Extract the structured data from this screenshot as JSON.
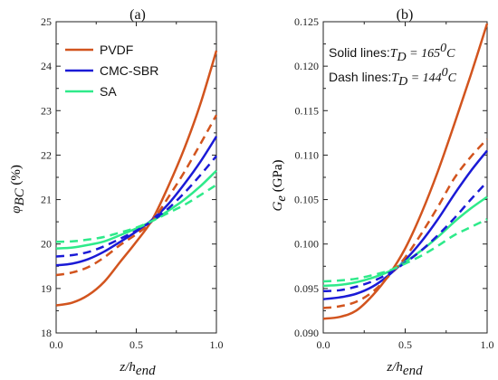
{
  "chart_data": [
    {
      "panel_label": "(a)",
      "type": "line",
      "xlabel": "z/h_end",
      "ylabel": "φ_BC (%)",
      "xlim": [
        0.0,
        1.0
      ],
      "ylim": [
        18,
        25
      ],
      "xticks": [
        "0.0",
        "0.5",
        "1.0"
      ],
      "yticks": [
        "18",
        "19",
        "20",
        "21",
        "22",
        "23",
        "24",
        "25"
      ],
      "x": [
        0.0,
        0.1,
        0.2,
        0.3,
        0.4,
        0.5,
        0.6,
        0.7,
        0.8,
        0.9,
        1.0
      ],
      "series": [
        {
          "name": "PVDF",
          "style": "solid",
          "color": "#D2541E",
          "values": [
            18.62,
            18.68,
            18.85,
            19.15,
            19.6,
            20.05,
            20.55,
            21.3,
            22.15,
            23.15,
            24.35
          ]
        },
        {
          "name": "CMC-SBR",
          "style": "solid",
          "color": "#1A1AD6",
          "values": [
            19.52,
            19.56,
            19.66,
            19.83,
            20.05,
            20.28,
            20.55,
            20.9,
            21.35,
            21.85,
            22.42
          ]
        },
        {
          "name": "SA",
          "style": "solid",
          "color": "#2EEA8A",
          "values": [
            19.9,
            19.92,
            19.98,
            20.06,
            20.2,
            20.35,
            20.52,
            20.75,
            21.0,
            21.3,
            21.65
          ]
        },
        {
          "name": "PVDF",
          "style": "dash",
          "color": "#D2541E",
          "values": [
            19.3,
            19.36,
            19.48,
            19.7,
            19.98,
            20.22,
            20.52,
            21.05,
            21.62,
            22.25,
            22.9
          ]
        },
        {
          "name": "CMC-SBR",
          "style": "dash",
          "color": "#1A1AD6",
          "values": [
            19.72,
            19.75,
            19.82,
            19.95,
            20.12,
            20.3,
            20.52,
            20.8,
            21.15,
            21.55,
            21.98
          ]
        },
        {
          "name": "SA",
          "style": "dash",
          "color": "#2EEA8A",
          "values": [
            20.05,
            20.06,
            20.1,
            20.16,
            20.26,
            20.37,
            20.52,
            20.7,
            20.88,
            21.1,
            21.33
          ]
        }
      ],
      "legend": {
        "position": "top-left",
        "entries": [
          "PVDF",
          "CMC-SBR",
          "SA"
        ]
      }
    },
    {
      "panel_label": "(b)",
      "type": "line",
      "xlabel": "z/h_end",
      "ylabel": "G_e (GPa)",
      "xlim": [
        0.0,
        1.0
      ],
      "ylim": [
        0.09,
        0.125
      ],
      "xticks": [
        "0.0",
        "0.5",
        "1.0"
      ],
      "yticks": [
        "0.090",
        "0.095",
        "0.100",
        "0.105",
        "0.110",
        "0.115",
        "0.120",
        "0.125"
      ],
      "x": [
        0.0,
        0.1,
        0.2,
        0.3,
        0.4,
        0.5,
        0.6,
        0.7,
        0.8,
        0.9,
        1.0
      ],
      "series": [
        {
          "name": "PVDF",
          "style": "solid",
          "color": "#D2541E",
          "values": [
            0.0916,
            0.0918,
            0.0925,
            0.0942,
            0.0965,
            0.0995,
            0.1035,
            0.1082,
            0.1135,
            0.119,
            0.1248
          ]
        },
        {
          "name": "CMC-SBR",
          "style": "solid",
          "color": "#1A1AD6",
          "values": [
            0.0938,
            0.094,
            0.0944,
            0.0952,
            0.0965,
            0.0982,
            0.1003,
            0.1028,
            0.1056,
            0.1082,
            0.1105
          ]
        },
        {
          "name": "SA",
          "style": "solid",
          "color": "#2EEA8A",
          "values": [
            0.0953,
            0.0954,
            0.0957,
            0.0962,
            0.0969,
            0.098,
            0.0993,
            0.1008,
            0.1025,
            0.104,
            0.1053
          ]
        },
        {
          "name": "PVDF",
          "style": "dash",
          "color": "#D2541E",
          "values": [
            0.0928,
            0.093,
            0.0935,
            0.0946,
            0.0964,
            0.0985,
            0.1012,
            0.1042,
            0.1074,
            0.1098,
            0.1118
          ]
        },
        {
          "name": "CMC-SBR",
          "style": "dash",
          "color": "#1A1AD6",
          "values": [
            0.0947,
            0.0948,
            0.0952,
            0.0958,
            0.0967,
            0.0979,
            0.0993,
            0.101,
            0.1029,
            0.105,
            0.107
          ]
        },
        {
          "name": "SA",
          "style": "dash",
          "color": "#2EEA8A",
          "values": [
            0.0958,
            0.0959,
            0.0961,
            0.0965,
            0.097,
            0.0978,
            0.0987,
            0.0998,
            0.101,
            0.1019,
            0.1028
          ]
        }
      ],
      "annotations": [
        {
          "text_prefix": "Solid lines:",
          "symbol": "T",
          "subscript": "D",
          "relation": " = 165",
          "superscript": "0",
          "unit": "C"
        },
        {
          "text_prefix": "Dash lines:",
          "symbol": "T",
          "subscript": "D",
          "relation": " = 144",
          "superscript": "0",
          "unit": "C"
        }
      ]
    }
  ],
  "axis_text": {
    "ylabel_a_symbol": "φ",
    "ylabel_a_sub": "BC",
    "ylabel_a_unit": " (%)",
    "ylabel_b_symbol": "G",
    "ylabel_b_sub": "e",
    "ylabel_b_unit": " (GPa)",
    "xlabel_main": "z/h",
    "xlabel_sub": "end"
  }
}
